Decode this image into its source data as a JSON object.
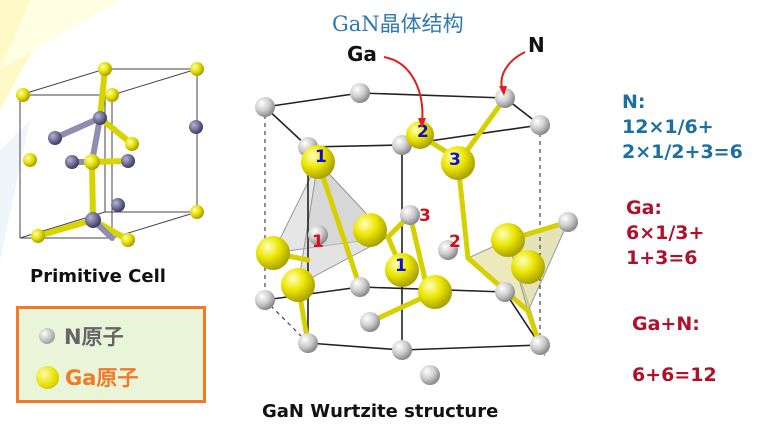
{
  "title": "GaN晶体结构",
  "ga_pointer_label": "Ga",
  "n_pointer_label": "N",
  "primitive_cell_caption": "Primitive Cell",
  "wurtzite_caption": "GaN Wurtzite structure",
  "legend": {
    "n_atom_label": "N原子",
    "ga_atom_label": "Ga原子"
  },
  "atom_numbers": {
    "blue": [
      "1",
      "2",
      "3",
      "1"
    ],
    "red": [
      "1",
      "3",
      "2"
    ]
  },
  "calc": {
    "n": [
      "N:",
      "12×1/6+",
      "2×1/2+3=6"
    ],
    "ga": [
      "Ga:",
      "6×1/3+",
      "1+3=6"
    ],
    "total_head": "Ga+N:",
    "total": "6+6=12"
  },
  "colors": {
    "title": "#2d79b0",
    "n_calc": "#1c6fa0",
    "ga_calc": "#b0102a",
    "legend_border": "#f07a28",
    "legend_bg": "#eaf4d8",
    "ga_atom": "#e6e000",
    "n_atom_wurtzite": "#c8c8c8",
    "n_atom_primitive": "#6d6d95"
  }
}
